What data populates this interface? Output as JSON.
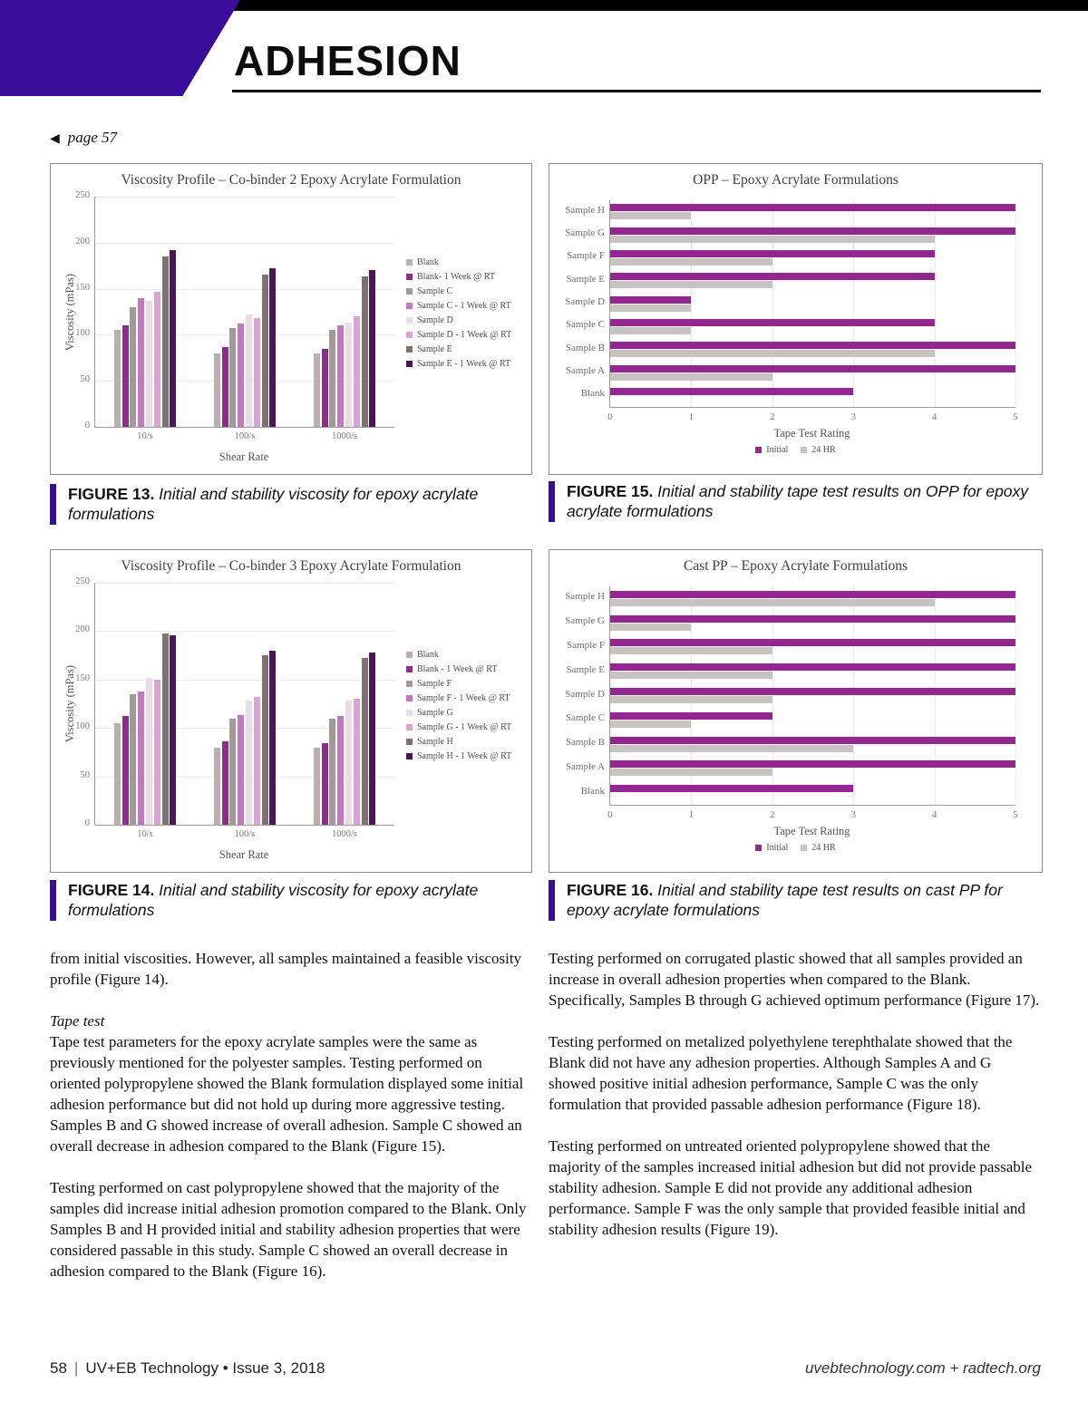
{
  "page": {
    "title": "ADHESION",
    "back_link": "page 57",
    "accent_purple": "#3a0d9b",
    "footer": {
      "page_number": "58",
      "separator": "|",
      "journal": "UV+EB Technology • Issue 3, 2018",
      "links": "uvebtechnology.com  +  radtech.org"
    }
  },
  "figures": {
    "fig13": {
      "label": "FIGURE 13.",
      "caption": " Initial and stability viscosity for epoxy acrylate formulations"
    },
    "fig14": {
      "label": "FIGURE 14.",
      "caption": " Initial and stability viscosity for epoxy acrylate formulations"
    },
    "fig15": {
      "label": "FIGURE 15.",
      "caption": " Initial and stability tape test results on OPP for epoxy acrylate formulations"
    },
    "fig16": {
      "label": "FIGURE 16.",
      "caption": " Initial and stability tape test results on cast PP for epoxy acrylate formulations"
    }
  },
  "body": {
    "left_p1": "from initial viscosities. However, all samples maintained a feasible viscosity profile (Figure 14).",
    "tape_test_heading": "Tape test",
    "left_p2": "Tape test parameters for the epoxy acrylate samples were the same as previously mentioned for the polyester samples. Testing performed on oriented polypropylene showed the Blank formulation displayed some initial adhesion performance but did not hold up during more aggressive testing. Samples B and G showed increase of overall adhesion. Sample C showed an overall decrease in adhesion compared to the Blank (Figure 15).",
    "left_p3": "Testing performed on cast polypropylene showed that the majority of the samples did increase initial adhesion promotion compared to the Blank. Only Samples B and H provided initial and stability adhesion properties that were considered passable in this study. Sample C showed an overall decrease in adhesion compared to the Blank (Figure 16).",
    "right_p1": "Testing performed on corrugated plastic showed that all samples provided an increase in overall adhesion properties when compared to the Blank. Specifically, Samples B through G achieved optimum performance (Figure 17).",
    "right_p2": "Testing performed on metalized polyethylene terephthalate showed that the Blank did not have any adhesion properties. Although Samples A and G showed positive initial adhesion performance, Sample C was the only formulation that provided passable adhesion performance (Figure 18).",
    "right_p3": "Testing performed on untreated oriented polypropylene showed that the majority of the samples increased initial adhesion but did not provide passable stability adhesion. Sample E did not provide any additional adhesion performance. Sample F was the only sample that provided feasible initial and stability adhesion results (Figure 19)."
  },
  "chart_data": [
    {
      "id": "fig13",
      "type": "bar",
      "title": "Viscosity Profile – Co-binder 2 Epoxy Acrylate Formulation",
      "xlabel": "Shear Rate",
      "ylabel": "Viscosity (mPas)",
      "ylim": [
        0,
        250
      ],
      "yticks": [
        0,
        50,
        100,
        150,
        200,
        250
      ],
      "grid": true,
      "legend_position": "right",
      "categories": [
        "10/s",
        "100/s",
        "1000/s"
      ],
      "series": [
        {
          "name": "Blank",
          "color": "#b7b0ac",
          "values": [
            105,
            80,
            80
          ]
        },
        {
          "name": "Blank- 1 Week @ RT",
          "color": "#8e2d88",
          "values": [
            110,
            87,
            85
          ]
        },
        {
          "name": "Sample C",
          "color": "#a29a96",
          "values": [
            130,
            107,
            105
          ]
        },
        {
          "name": "Sample C - 1 Week @ RT",
          "color": "#bf7cbd",
          "values": [
            140,
            112,
            110
          ]
        },
        {
          "name": "Sample D",
          "color": "#e9dce7",
          "values": [
            137,
            122,
            113
          ]
        },
        {
          "name": "Sample D - 1 Week @ RT",
          "color": "#d6a6d1",
          "values": [
            147,
            118,
            120
          ]
        },
        {
          "name": "Sample E",
          "color": "#7c7370",
          "values": [
            185,
            165,
            163
          ]
        },
        {
          "name": "Sample E - 1 Week @ RT",
          "color": "#4e1458",
          "values": [
            192,
            172,
            170
          ]
        }
      ]
    },
    {
      "id": "fig14",
      "type": "bar",
      "title": "Viscosity Profile – Co-binder 3 Epoxy Acrylate Formulation",
      "xlabel": "Shear Rate",
      "ylabel": "Viscosity (mPas)",
      "ylim": [
        0,
        250
      ],
      "yticks": [
        0,
        50,
        100,
        150,
        200,
        250
      ],
      "grid": true,
      "legend_position": "right",
      "categories": [
        "10/s",
        "100/s",
        "1000/s"
      ],
      "series": [
        {
          "name": "Blank",
          "color": "#b7b0ac",
          "values": [
            105,
            80,
            80
          ]
        },
        {
          "name": "Blank - 1 Week @ RT",
          "color": "#8e2d88",
          "values": [
            112,
            86,
            84
          ]
        },
        {
          "name": "Sample F",
          "color": "#a29a96",
          "values": [
            135,
            110,
            110
          ]
        },
        {
          "name": "Sample F - 1 Week @ RT",
          "color": "#bf7cbd",
          "values": [
            138,
            113,
            112
          ]
        },
        {
          "name": "Sample G",
          "color": "#e9dce7",
          "values": [
            152,
            128,
            128
          ]
        },
        {
          "name": "Sample G - 1 Week @ RT",
          "color": "#d6a6d1",
          "values": [
            150,
            132,
            130
          ]
        },
        {
          "name": "Sample H",
          "color": "#7c7370",
          "values": [
            198,
            175,
            172
          ]
        },
        {
          "name": "Sample H - 1 Week @ RT",
          "color": "#4e1458",
          "values": [
            196,
            180,
            178
          ]
        }
      ]
    },
    {
      "id": "fig15",
      "type": "hbar",
      "title": "OPP – Epoxy Acrylate Formulations",
      "xlabel": "Tape Test Rating",
      "xlim": [
        0,
        5
      ],
      "xticks": [
        0,
        1,
        2,
        3,
        4,
        5
      ],
      "grid": true,
      "legend_position": "bottom",
      "categories": [
        "Sample H",
        "Sample G",
        "Sample F",
        "Sample E",
        "Sample D",
        "Sample C",
        "Sample B",
        "Sample A",
        "Blank"
      ],
      "series": [
        {
          "name": "Initial",
          "color": "#93268f",
          "values": [
            5,
            5,
            4,
            4,
            1,
            4,
            5,
            5,
            3
          ]
        },
        {
          "name": "24 HR",
          "color": "#c8c2c0",
          "values": [
            1,
            4,
            2,
            2,
            1,
            1,
            4,
            2,
            0
          ]
        }
      ]
    },
    {
      "id": "fig16",
      "type": "hbar",
      "title": "Cast PP – Epoxy Acrylate Formulations",
      "xlabel": "Tape Test Rating",
      "xlim": [
        0,
        5
      ],
      "xticks": [
        0,
        1,
        2,
        3,
        4,
        5
      ],
      "grid": true,
      "legend_position": "bottom",
      "categories": [
        "Sample H",
        "Sample G",
        "Sample F",
        "Sample E",
        "Sample D",
        "Sample C",
        "Sample B",
        "Sample A",
        "Blank"
      ],
      "series": [
        {
          "name": "Initial",
          "color": "#93268f",
          "values": [
            5,
            5,
            5,
            5,
            5,
            2,
            5,
            5,
            3
          ]
        },
        {
          "name": "24 HR",
          "color": "#c8c2c0",
          "values": [
            4,
            1,
            2,
            2,
            2,
            1,
            3,
            2,
            0
          ]
        }
      ]
    }
  ]
}
